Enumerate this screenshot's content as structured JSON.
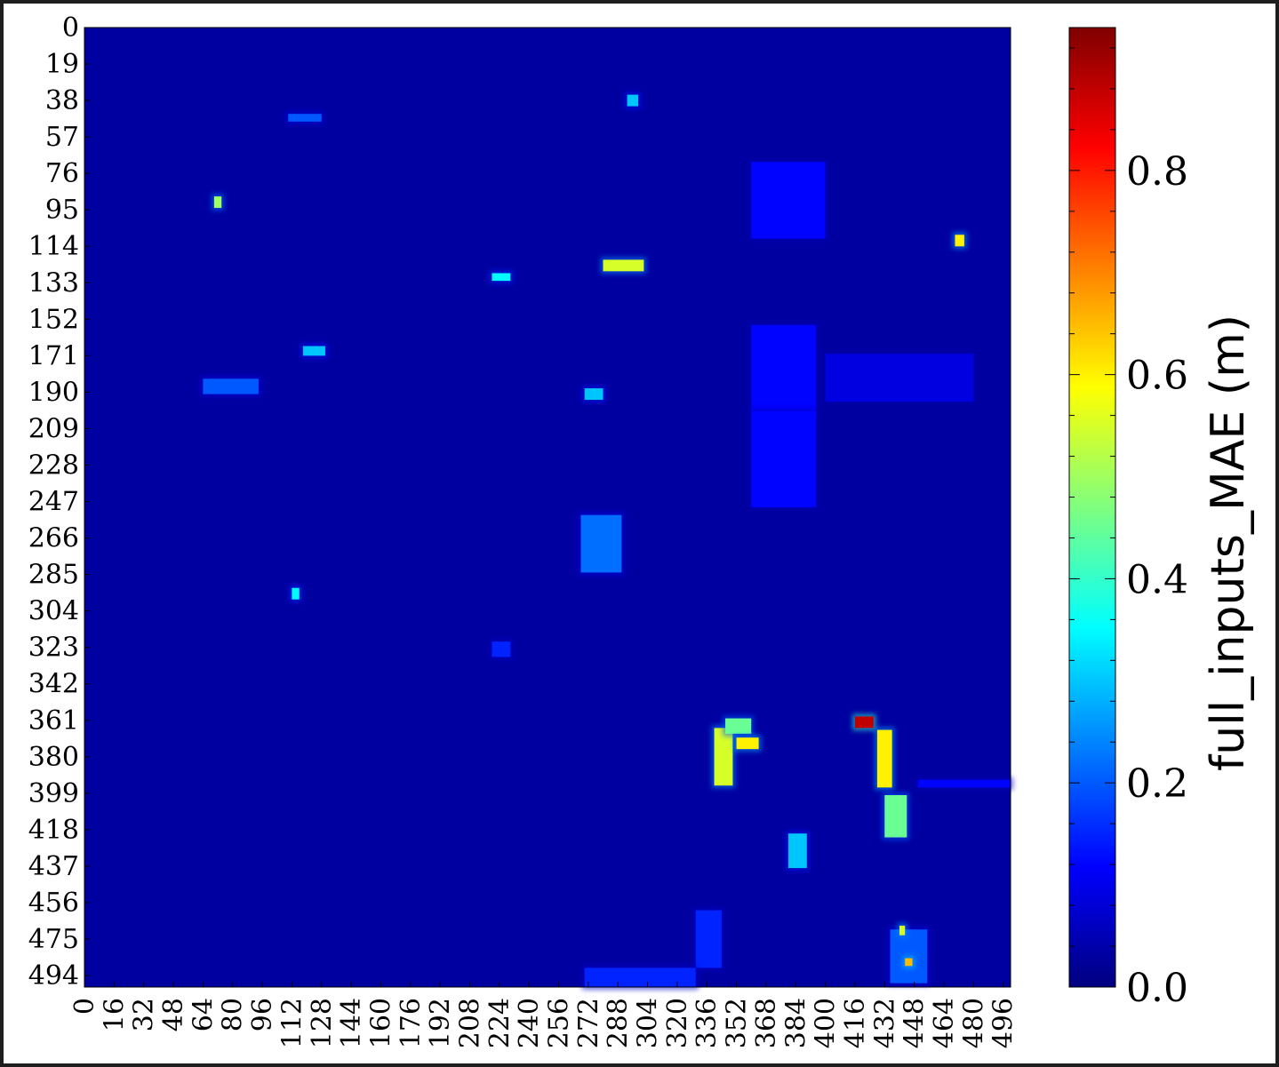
{
  "chart_data": {
    "type": "heatmap",
    "title": "",
    "xlabel": "",
    "ylabel": "",
    "x_tick_labels": [
      "0",
      "16",
      "32",
      "48",
      "64",
      "80",
      "96",
      "112",
      "128",
      "144",
      "160",
      "176",
      "192",
      "208",
      "224",
      "240",
      "256",
      "272",
      "288",
      "304",
      "320",
      "336",
      "352",
      "368",
      "384",
      "400",
      "416",
      "432",
      "448",
      "464",
      "480",
      "496"
    ],
    "y_tick_labels": [
      "0",
      "19",
      "38",
      "57",
      "76",
      "95",
      "114",
      "133",
      "152",
      "171",
      "190",
      "209",
      "228",
      "247",
      "266",
      "285",
      "304",
      "323",
      "342",
      "361",
      "380",
      "399",
      "418",
      "437",
      "456",
      "475",
      "494"
    ],
    "xlim": [
      0,
      500
    ],
    "ylim": [
      0,
      500
    ],
    "colormap": "jet",
    "colorbar": {
      "label": "full_inputs_MAE (m)",
      "ticks": [
        "0.0",
        "0.2",
        "0.4",
        "0.6",
        "0.8"
      ],
      "range": [
        0.0,
        0.94
      ],
      "colors": [
        "#00007f",
        "#0000ff",
        "#007fff",
        "#00ffff",
        "#7fff7f",
        "#ffff00",
        "#ff7f00",
        "#ff0000",
        "#7f0000"
      ]
    },
    "background_value": 0.03,
    "features": [
      {
        "x": 280,
        "y": 121,
        "w": 22,
        "h": 6,
        "value": 0.55
      },
      {
        "x": 293,
        "y": 35,
        "w": 6,
        "h": 6,
        "value": 0.3
      },
      {
        "x": 70,
        "y": 88,
        "w": 4,
        "h": 6,
        "value": 0.5
      },
      {
        "x": 470,
        "y": 108,
        "w": 5,
        "h": 6,
        "value": 0.6
      },
      {
        "x": 110,
        "y": 45,
        "w": 18,
        "h": 4,
        "value": 0.2
      },
      {
        "x": 220,
        "y": 128,
        "w": 10,
        "h": 4,
        "value": 0.35
      },
      {
        "x": 118,
        "y": 166,
        "w": 12,
        "h": 5,
        "value": 0.3
      },
      {
        "x": 64,
        "y": 183,
        "w": 30,
        "h": 8,
        "value": 0.2
      },
      {
        "x": 270,
        "y": 188,
        "w": 10,
        "h": 6,
        "value": 0.3
      },
      {
        "x": 268,
        "y": 254,
        "w": 22,
        "h": 30,
        "value": 0.22
      },
      {
        "x": 112,
        "y": 292,
        "w": 4,
        "h": 6,
        "value": 0.35
      },
      {
        "x": 220,
        "y": 320,
        "w": 10,
        "h": 8,
        "value": 0.15
      },
      {
        "x": 360,
        "y": 70,
        "w": 40,
        "h": 40,
        "value": 0.12
      },
      {
        "x": 360,
        "y": 155,
        "w": 35,
        "h": 45,
        "value": 0.12
      },
      {
        "x": 360,
        "y": 200,
        "w": 35,
        "h": 50,
        "value": 0.12
      },
      {
        "x": 400,
        "y": 170,
        "w": 80,
        "h": 25,
        "value": 0.09
      },
      {
        "x": 340,
        "y": 365,
        "w": 10,
        "h": 30,
        "value": 0.55
      },
      {
        "x": 346,
        "y": 360,
        "w": 14,
        "h": 8,
        "value": 0.45
      },
      {
        "x": 352,
        "y": 370,
        "w": 12,
        "h": 6,
        "value": 0.6
      },
      {
        "x": 416,
        "y": 359,
        "w": 10,
        "h": 6,
        "value": 0.88
      },
      {
        "x": 428,
        "y": 366,
        "w": 8,
        "h": 30,
        "value": 0.6
      },
      {
        "x": 432,
        "y": 400,
        "w": 12,
        "h": 22,
        "value": 0.45
      },
      {
        "x": 450,
        "y": 392,
        "w": 50,
        "h": 4,
        "value": 0.12
      },
      {
        "x": 380,
        "y": 420,
        "w": 10,
        "h": 18,
        "value": 0.3
      },
      {
        "x": 330,
        "y": 460,
        "w": 14,
        "h": 30,
        "value": 0.15
      },
      {
        "x": 435,
        "y": 470,
        "w": 20,
        "h": 28,
        "value": 0.2
      },
      {
        "x": 443,
        "y": 485,
        "w": 4,
        "h": 4,
        "value": 0.65
      },
      {
        "x": 440,
        "y": 468,
        "w": 3,
        "h": 5,
        "value": 0.55
      },
      {
        "x": 270,
        "y": 490,
        "w": 60,
        "h": 10,
        "value": 0.15
      }
    ]
  }
}
